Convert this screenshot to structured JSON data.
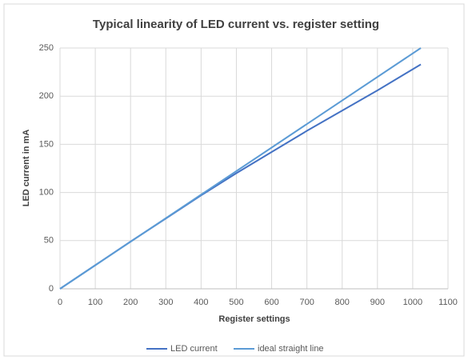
{
  "chart_data": {
    "type": "line",
    "title": "Typical linearity of LED current vs. register setting",
    "x_label": "Register settings",
    "y_label": "LED current in mA",
    "xlim": [
      0,
      1100
    ],
    "xticks": [
      0,
      100,
      200,
      300,
      400,
      500,
      600,
      700,
      800,
      900,
      1000,
      1100
    ],
    "ylim": [
      0,
      250
    ],
    "yticks": [
      0,
      50,
      100,
      150,
      200,
      250
    ],
    "grid": true,
    "legend": "bottom",
    "series": [
      {
        "name": "LED current",
        "color": "#4472c4",
        "x": [
          0,
          100,
          200,
          300,
          400,
          500,
          600,
          700,
          800,
          900,
          1023
        ],
        "values": [
          0,
          24.5,
          49,
          73,
          97,
          120,
          142,
          164,
          185,
          206,
          233
        ]
      },
      {
        "name": "ideal straight line",
        "color": "#5b9bd5",
        "x": [
          0,
          1023
        ],
        "values": [
          0,
          250
        ]
      }
    ]
  }
}
